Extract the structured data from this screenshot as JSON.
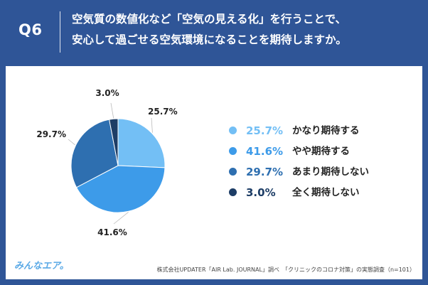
{
  "question": {
    "label": "Q6",
    "line1": "空気質の数値化など「空気の見える化」を行うことで、",
    "line2": "安心して過ごせる空気環境になることを期待しますか。"
  },
  "chart_data": {
    "type": "pie",
    "title": "",
    "categories": [
      "かなり期待する",
      "やや期待する",
      "あまり期待しない",
      "全く期待しない"
    ],
    "values": [
      25.7,
      41.6,
      29.7,
      3.0
    ],
    "value_labels": [
      "25.7%",
      "41.6%",
      "29.7%",
      "3.0%"
    ],
    "colors": [
      "#73bff5",
      "#3d9be9",
      "#2e6fb0",
      "#1d3d66"
    ],
    "legend_placement": "right"
  },
  "branding": {
    "logo": "みんなエア。"
  },
  "source": "株式会社UPDATER「AIR Lab. JOURNAL」調べ　「クリニックのコロナ対策」の実態調査（n=101）"
}
